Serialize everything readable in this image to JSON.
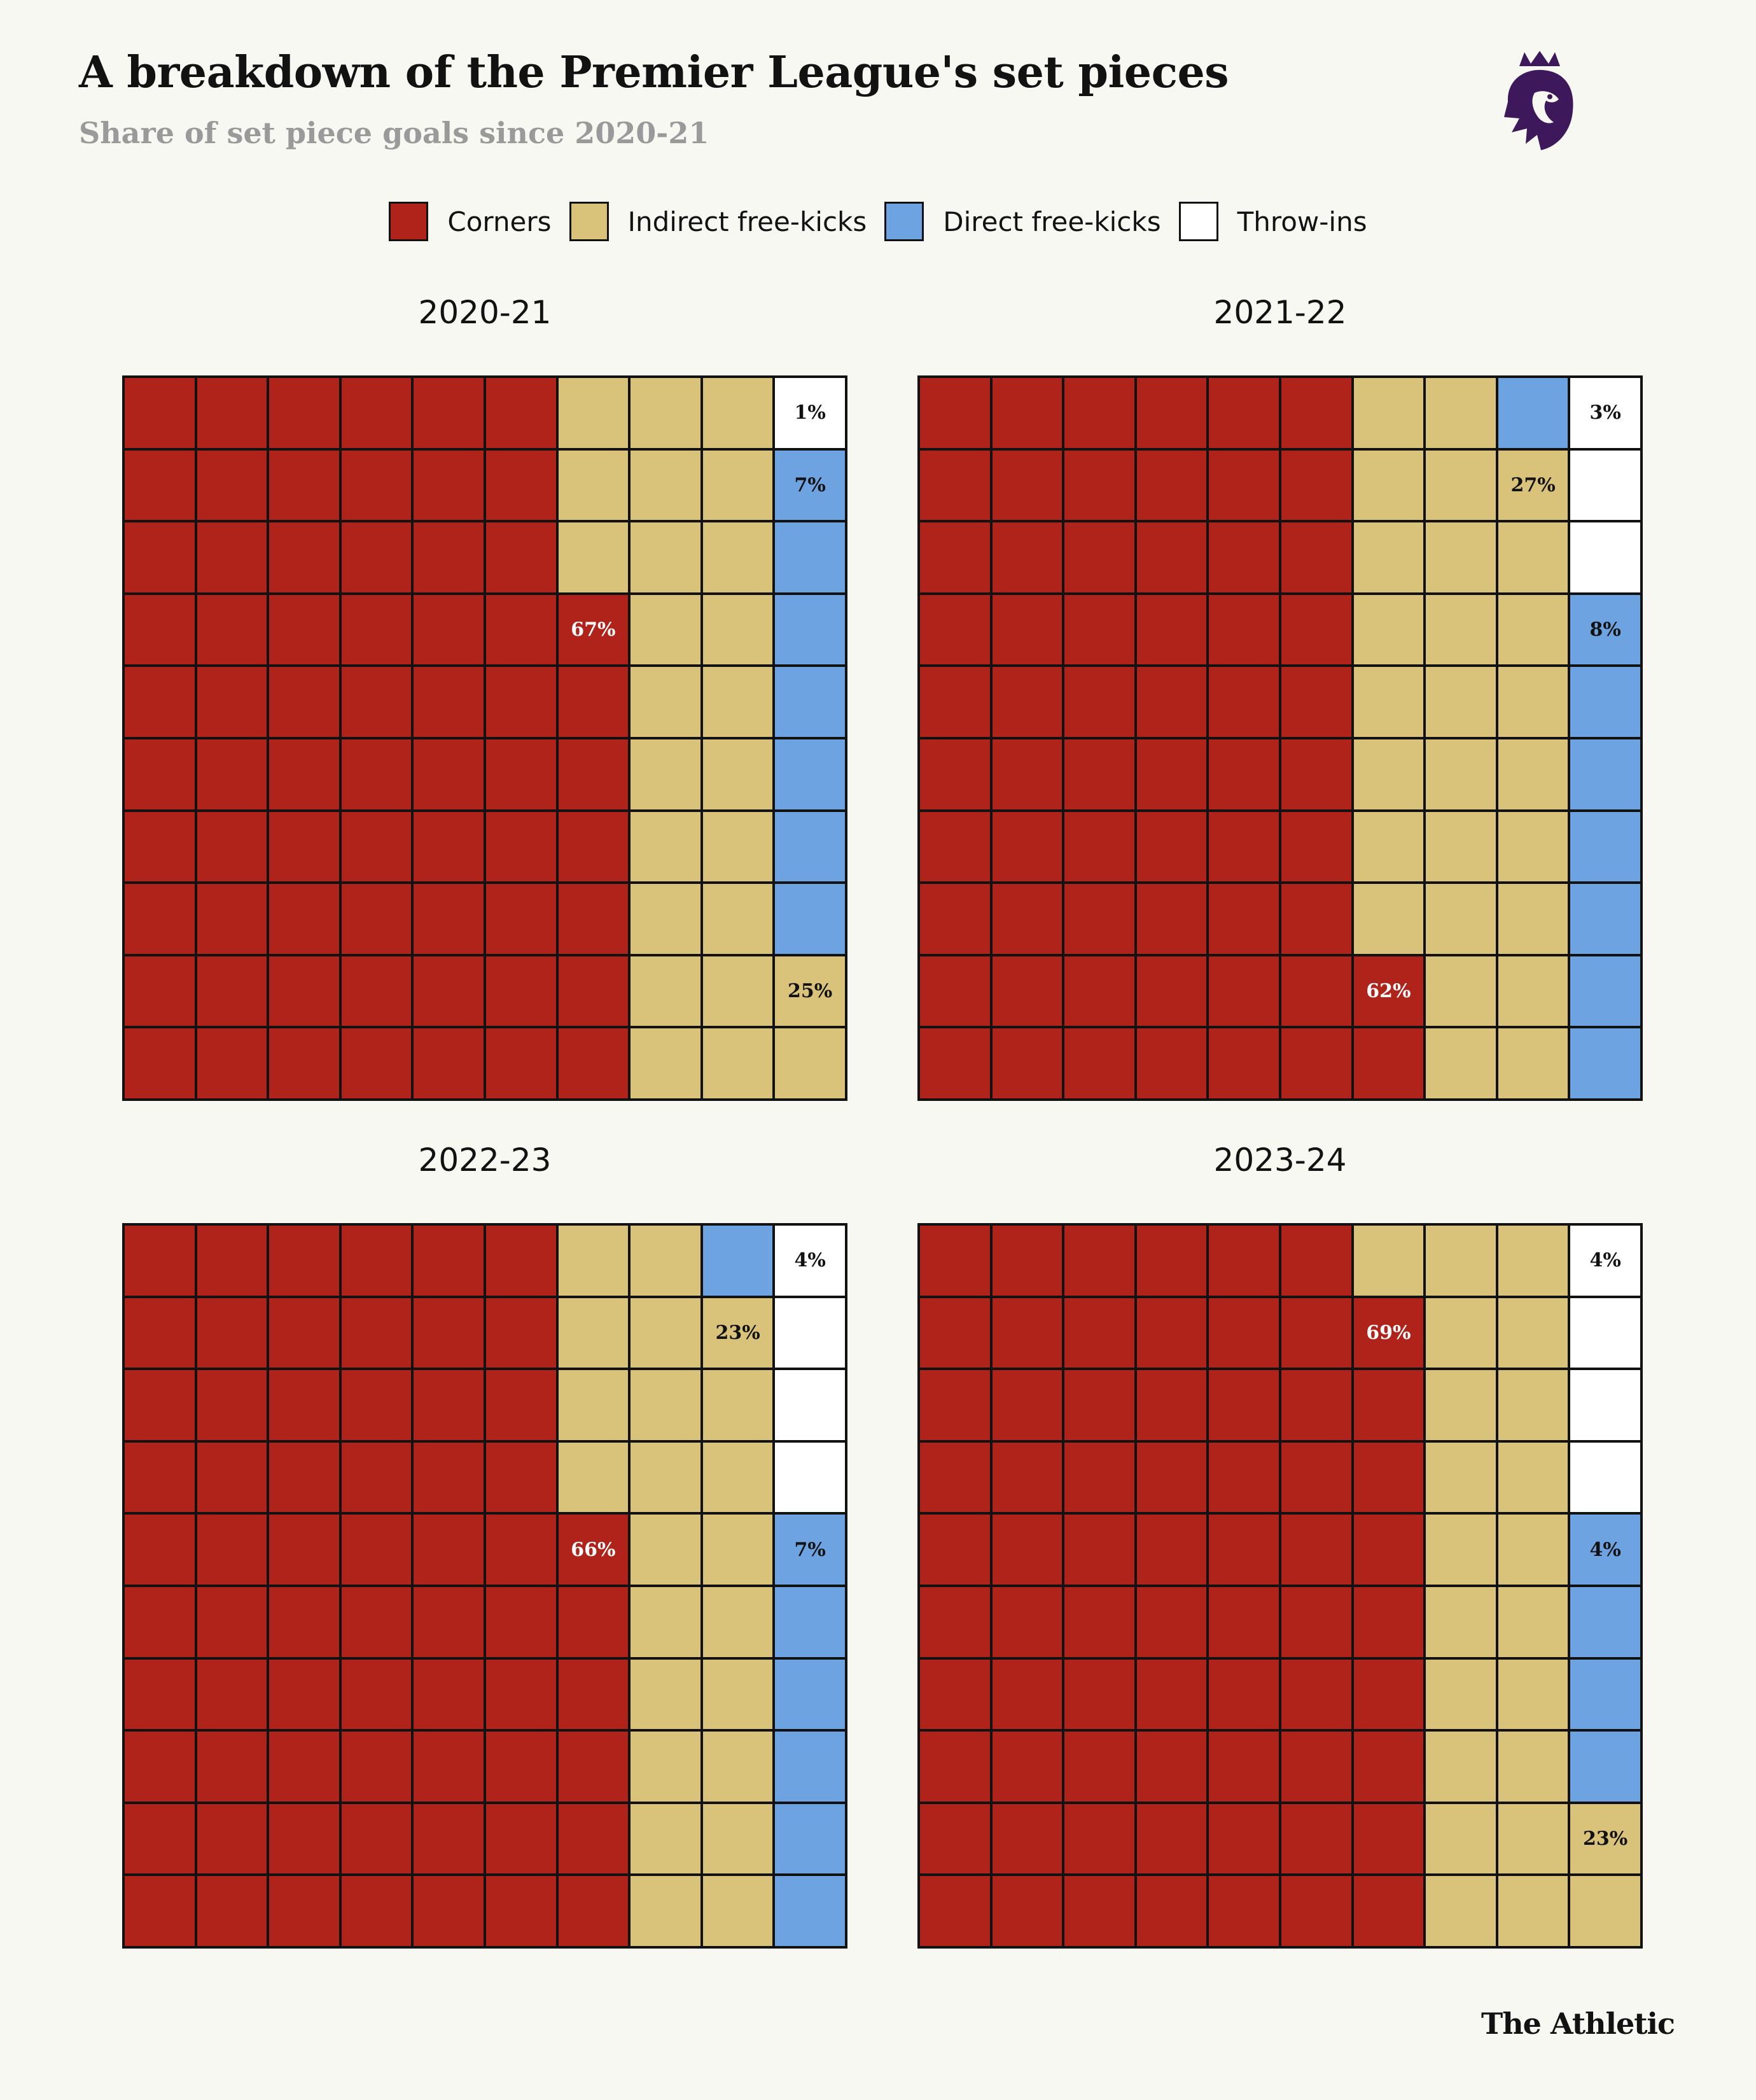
{
  "title": "A breakdown of the Premier League's set pieces",
  "subtitle": "Share of set piece goals since 2020-21",
  "brand": "The Athletic",
  "colors": {
    "corners": "#b0231a",
    "indirect": "#d9c27a",
    "direct": "#6ea3e2",
    "throw": "#ffffff",
    "logo": "#3d195b"
  },
  "legend": [
    {
      "key": "corners",
      "label": "Corners"
    },
    {
      "key": "indirect",
      "label": "Indirect free-kicks"
    },
    {
      "key": "direct",
      "label": "Direct free-kicks"
    },
    {
      "key": "throw",
      "label": "Throw-ins"
    }
  ],
  "chart_data": {
    "type": "waffle",
    "units_per_chart": 100,
    "panels": [
      {
        "season": "2020-21",
        "values": {
          "corners": 67,
          "indirect": 25,
          "direct": 7,
          "throw": 1
        },
        "labels": {
          "corners": "67%",
          "indirect": "25%",
          "direct": "7%",
          "throw": "1%"
        }
      },
      {
        "season": "2021-22",
        "values": {
          "corners": 62,
          "indirect": 27,
          "direct": 8,
          "throw": 3
        },
        "labels": {
          "corners": "62%",
          "indirect": "27%",
          "direct": "8%",
          "throw": "3%"
        }
      },
      {
        "season": "2022-23",
        "values": {
          "corners": 66,
          "indirect": 23,
          "direct": 7,
          "throw": 4
        },
        "labels": {
          "corners": "66%",
          "indirect": "23%",
          "direct": "7%",
          "throw": "4%"
        }
      },
      {
        "season": "2023-24",
        "values": {
          "corners": 69,
          "indirect": 23,
          "direct": 4,
          "throw": 4
        },
        "labels": {
          "corners": "69%",
          "indirect": "23%",
          "direct": "4%",
          "throw": "4%"
        }
      }
    ]
  }
}
